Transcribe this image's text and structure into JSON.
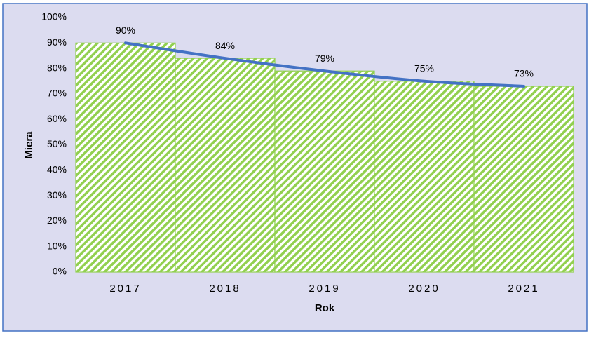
{
  "chart_data": {
    "type": "bar",
    "x_label": "Rok",
    "y_label": "Miera",
    "categories": [
      "2017",
      "2018",
      "2019",
      "2020",
      "2021"
    ],
    "values": [
      90,
      84,
      79,
      75,
      73
    ],
    "value_labels": [
      "90%",
      "84%",
      "79%",
      "75%",
      "73%"
    ],
    "color": "#92d050",
    "line_color": "#4472c4",
    "ylim": [
      0,
      100
    ],
    "yticks": [
      {
        "value": 0,
        "label": "0%"
      },
      {
        "value": 10,
        "label": "10%"
      },
      {
        "value": 20,
        "label": "20%"
      },
      {
        "value": 30,
        "label": "30%"
      },
      {
        "value": 40,
        "label": "40%"
      },
      {
        "value": 50,
        "label": "50%"
      },
      {
        "value": 60,
        "label": "60%"
      },
      {
        "value": 70,
        "label": "70%"
      },
      {
        "value": 80,
        "label": "80%"
      },
      {
        "value": 90,
        "label": "90%"
      },
      {
        "value": 100,
        "label": "100%"
      }
    ]
  }
}
